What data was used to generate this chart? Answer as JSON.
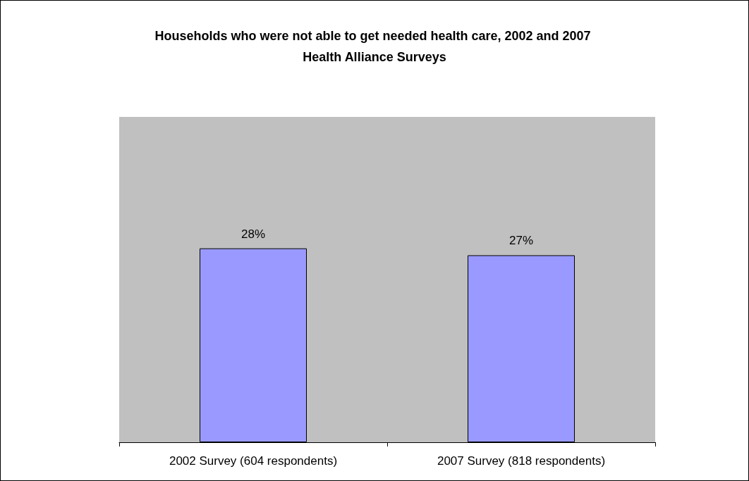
{
  "chart_data": {
    "type": "bar",
    "title": "Households who were not able to get needed health care, 2002 and 2007 Health Alliance Surveys",
    "categories": [
      "2002 Survey (604 respondents)",
      "2007 Survey (818 respondents)"
    ],
    "values": [
      28,
      27
    ],
    "value_labels": [
      "28%",
      "27%"
    ],
    "color": "#9999ff",
    "grid": false
  }
}
